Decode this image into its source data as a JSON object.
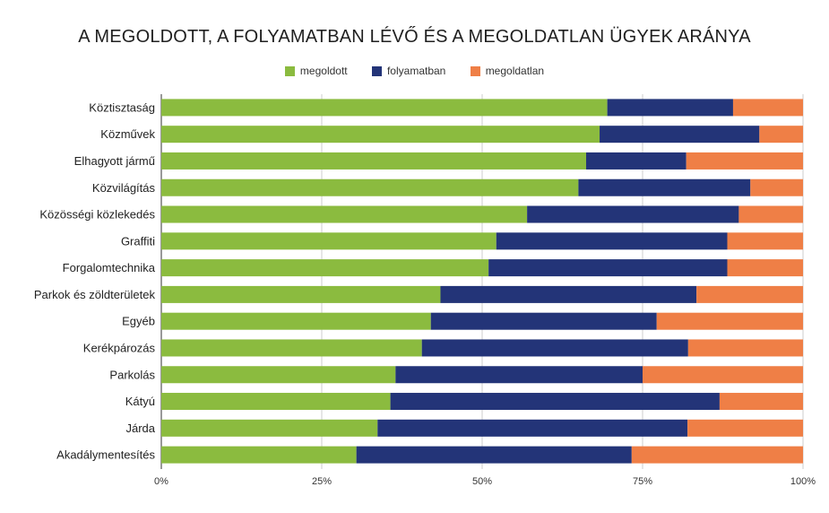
{
  "chart_data": {
    "type": "bar",
    "orientation": "horizontal",
    "stacked": "percent",
    "title": "A MEGOLDOTT, A FOLYAMATBAN LÉVŐ ÉS A MEGOLDATLAN ÜGYEK ARÁNYA",
    "legend_position": "top",
    "grid": "vertical",
    "xlim": [
      0,
      100
    ],
    "x_ticks": [
      "0%",
      "25%",
      "50%",
      "75%",
      "100%"
    ],
    "categories": [
      "Köztisztaság",
      "Közművek",
      "Elhagyott jármű",
      "Közvilágítás",
      "Közösségi közlekedés",
      "Graffiti",
      "Forgalomtechnika",
      "Parkok és zöldterületek",
      "Egyéb",
      "Kerékpározás",
      "Parkolás",
      "Kátyú",
      "Járda",
      "Akadálymentesítés"
    ],
    "series": [
      {
        "name": "megoldott",
        "color": "#8bbb3f",
        "values": [
          69.5,
          68.3,
          66.2,
          65.0,
          57.0,
          52.2,
          51.0,
          43.5,
          42.0,
          40.6,
          36.5,
          35.7,
          33.7,
          30.4
        ]
      },
      {
        "name": "folyamatban",
        "color": "#233478",
        "values": [
          19.6,
          24.9,
          15.6,
          26.8,
          33.0,
          36.0,
          37.2,
          39.9,
          35.2,
          41.5,
          38.5,
          51.3,
          48.3,
          42.9
        ]
      },
      {
        "name": "megoldatlan",
        "color": "#ef7f46",
        "values": [
          10.9,
          6.8,
          18.2,
          8.2,
          10.0,
          11.8,
          11.8,
          16.6,
          22.8,
          17.9,
          25.0,
          13.0,
          18.0,
          26.7
        ]
      }
    ]
  }
}
